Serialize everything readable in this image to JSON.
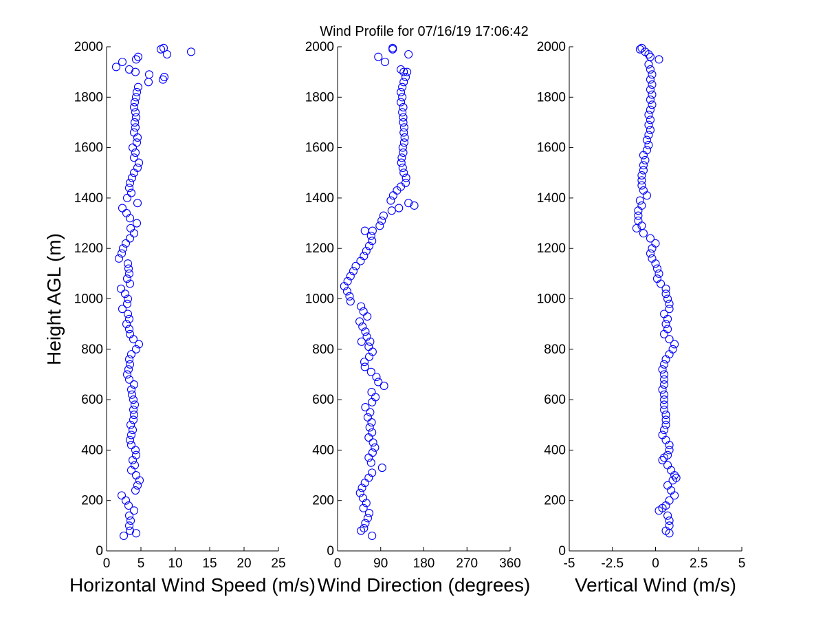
{
  "title": "Wind Profile for  07/16/19 17:06:42",
  "ylabel": "Height AGL (m)",
  "chart_data": [
    {
      "type": "scatter",
      "xlabel": "Horizontal Wind Speed (m/s)",
      "ylabel": "Height AGL (m)",
      "xlim": [
        0,
        25
      ],
      "ylim": [
        0,
        2000
      ],
      "xticks": [
        "0",
        "5",
        "10",
        "15",
        "20",
        "25"
      ],
      "xtick_values": [
        0,
        5,
        10,
        15,
        20,
        25
      ],
      "yticks": [
        "0",
        "200",
        "400",
        "600",
        "800",
        "1000",
        "1200",
        "1400",
        "1600",
        "1800",
        "2000"
      ],
      "ytick_values": [
        0,
        200,
        400,
        600,
        800,
        1000,
        1200,
        1400,
        1600,
        1800,
        2000
      ],
      "marker_color": "#0000ff",
      "points": [
        [
          2.5,
          60
        ],
        [
          4.3,
          70
        ],
        [
          3.4,
          80
        ],
        [
          3.3,
          100
        ],
        [
          3.5,
          120
        ],
        [
          3.3,
          140
        ],
        [
          4.0,
          160
        ],
        [
          3.2,
          180
        ],
        [
          2.8,
          200
        ],
        [
          2.2,
          220
        ],
        [
          4.2,
          240
        ],
        [
          4.5,
          260
        ],
        [
          4.8,
          280
        ],
        [
          4.3,
          300
        ],
        [
          3.6,
          320
        ],
        [
          4.1,
          340
        ],
        [
          3.8,
          360
        ],
        [
          4.3,
          380
        ],
        [
          4.2,
          400
        ],
        [
          3.6,
          420
        ],
        [
          3.4,
          440
        ],
        [
          3.6,
          460
        ],
        [
          3.8,
          480
        ],
        [
          3.5,
          500
        ],
        [
          3.9,
          520
        ],
        [
          4.0,
          540
        ],
        [
          3.9,
          560
        ],
        [
          4.1,
          580
        ],
        [
          3.9,
          600
        ],
        [
          3.7,
          620
        ],
        [
          3.6,
          640
        ],
        [
          4.0,
          660
        ],
        [
          3.3,
          680
        ],
        [
          3.0,
          700
        ],
        [
          3.2,
          720
        ],
        [
          3.4,
          740
        ],
        [
          3.3,
          760
        ],
        [
          3.6,
          780
        ],
        [
          4.3,
          800
        ],
        [
          4.7,
          820
        ],
        [
          3.9,
          840
        ],
        [
          3.4,
          860
        ],
        [
          3.3,
          880
        ],
        [
          2.9,
          900
        ],
        [
          3.3,
          920
        ],
        [
          3.1,
          940
        ],
        [
          2.3,
          960
        ],
        [
          3.0,
          980
        ],
        [
          3.1,
          1000
        ],
        [
          2.7,
          1020
        ],
        [
          2.1,
          1040
        ],
        [
          3.4,
          1060
        ],
        [
          3.0,
          1080
        ],
        [
          3.3,
          1100
        ],
        [
          3.2,
          1120
        ],
        [
          3.1,
          1140
        ],
        [
          1.8,
          1160
        ],
        [
          2.2,
          1180
        ],
        [
          2.4,
          1200
        ],
        [
          2.8,
          1220
        ],
        [
          3.4,
          1240
        ],
        [
          4.0,
          1260
        ],
        [
          3.5,
          1280
        ],
        [
          4.4,
          1300
        ],
        [
          3.4,
          1320
        ],
        [
          2.9,
          1340
        ],
        [
          2.3,
          1360
        ],
        [
          4.5,
          1380
        ],
        [
          3.0,
          1400
        ],
        [
          3.6,
          1420
        ],
        [
          3.3,
          1440
        ],
        [
          3.4,
          1460
        ],
        [
          3.7,
          1480
        ],
        [
          4.0,
          1500
        ],
        [
          4.5,
          1520
        ],
        [
          4.7,
          1540
        ],
        [
          4.0,
          1560
        ],
        [
          4.2,
          1580
        ],
        [
          3.8,
          1600
        ],
        [
          4.4,
          1620
        ],
        [
          4.5,
          1640
        ],
        [
          4.0,
          1660
        ],
        [
          4.2,
          1680
        ],
        [
          4.1,
          1700
        ],
        [
          4.3,
          1720
        ],
        [
          4.2,
          1740
        ],
        [
          4.0,
          1760
        ],
        [
          4.1,
          1780
        ],
        [
          4.3,
          1800
        ],
        [
          4.4,
          1820
        ],
        [
          4.6,
          1840
        ],
        [
          6.1,
          1860
        ],
        [
          8.2,
          1870
        ],
        [
          8.4,
          1880
        ],
        [
          6.2,
          1890
        ],
        [
          4.2,
          1900
        ],
        [
          3.3,
          1910
        ],
        [
          1.4,
          1920
        ],
        [
          2.3,
          1940
        ],
        [
          4.3,
          1950
        ],
        [
          4.6,
          1960
        ],
        [
          8.8,
          1970
        ],
        [
          12.3,
          1980
        ],
        [
          7.9,
          1990
        ],
        [
          8.3,
          1995
        ]
      ]
    },
    {
      "type": "scatter",
      "xlabel": "Wind Direction (degrees)",
      "xlim": [
        0,
        360
      ],
      "ylim": [
        0,
        2000
      ],
      "xticks": [
        "0",
        "90",
        "180",
        "270",
        "360"
      ],
      "xtick_values": [
        0,
        90,
        180,
        270,
        360
      ],
      "yticks": [
        "0",
        "200",
        "400",
        "600",
        "800",
        "1000",
        "1200",
        "1400",
        "1600",
        "1800",
        "2000"
      ],
      "ytick_values": [
        0,
        200,
        400,
        600,
        800,
        1000,
        1200,
        1400,
        1600,
        1800,
        2000
      ],
      "marker_color": "#0000ff",
      "points": [
        [
          72,
          60
        ],
        [
          49,
          80
        ],
        [
          55,
          90
        ],
        [
          58,
          110
        ],
        [
          63,
          130
        ],
        [
          66,
          150
        ],
        [
          54,
          170
        ],
        [
          60,
          190
        ],
        [
          53,
          210
        ],
        [
          47,
          230
        ],
        [
          51,
          250
        ],
        [
          57,
          270
        ],
        [
          65,
          290
        ],
        [
          72,
          310
        ],
        [
          93,
          330
        ],
        [
          70,
          350
        ],
        [
          65,
          370
        ],
        [
          73,
          390
        ],
        [
          78,
          410
        ],
        [
          74,
          430
        ],
        [
          65,
          450
        ],
        [
          72,
          470
        ],
        [
          67,
          490
        ],
        [
          71,
          510
        ],
        [
          63,
          530
        ],
        [
          68,
          550
        ],
        [
          58,
          570
        ],
        [
          72,
          590
        ],
        [
          79,
          610
        ],
        [
          71,
          630
        ],
        [
          97,
          655
        ],
        [
          85,
          670
        ],
        [
          81,
          690
        ],
        [
          70,
          710
        ],
        [
          57,
          730
        ],
        [
          56,
          750
        ],
        [
          66,
          770
        ],
        [
          73,
          790
        ],
        [
          65,
          810
        ],
        [
          68,
          830
        ],
        [
          50,
          830
        ],
        [
          61,
          850
        ],
        [
          58,
          870
        ],
        [
          52,
          890
        ],
        [
          46,
          910
        ],
        [
          62,
          930
        ],
        [
          54,
          950
        ],
        [
          49,
          970
        ],
        [
          27,
          990
        ],
        [
          25,
          1010
        ],
        [
          20,
          1030
        ],
        [
          14,
          1050
        ],
        [
          21,
          1070
        ],
        [
          27,
          1090
        ],
        [
          33,
          1110
        ],
        [
          38,
          1130
        ],
        [
          48,
          1150
        ],
        [
          55,
          1170
        ],
        [
          60,
          1190
        ],
        [
          66,
          1210
        ],
        [
          72,
          1230
        ],
        [
          70,
          1250
        ],
        [
          73,
          1270
        ],
        [
          57,
          1270
        ],
        [
          88,
          1290
        ],
        [
          92,
          1310
        ],
        [
          96,
          1330
        ],
        [
          113,
          1350
        ],
        [
          128,
          1360
        ],
        [
          148,
          1380
        ],
        [
          160,
          1370
        ],
        [
          111,
          1390
        ],
        [
          116,
          1410
        ],
        [
          124,
          1430
        ],
        [
          132,
          1445
        ],
        [
          142,
          1460
        ],
        [
          143,
          1480
        ],
        [
          138,
          1500
        ],
        [
          136,
          1520
        ],
        [
          133,
          1540
        ],
        [
          134,
          1560
        ],
        [
          137,
          1580
        ],
        [
          136,
          1600
        ],
        [
          139,
          1620
        ],
        [
          140,
          1640
        ],
        [
          138,
          1660
        ],
        [
          139,
          1680
        ],
        [
          137,
          1700
        ],
        [
          137,
          1720
        ],
        [
          135,
          1740
        ],
        [
          137,
          1760
        ],
        [
          132,
          1780
        ],
        [
          135,
          1800
        ],
        [
          132,
          1820
        ],
        [
          135,
          1840
        ],
        [
          138,
          1860
        ],
        [
          142,
          1880
        ],
        [
          138,
          1900
        ],
        [
          145,
          1900
        ],
        [
          132,
          1910
        ],
        [
          99,
          1940
        ],
        [
          85,
          1960
        ],
        [
          148,
          1970
        ],
        [
          115,
          1990
        ],
        [
          115,
          1995
        ]
      ]
    },
    {
      "type": "scatter",
      "xlabel": "Vertical Wind (m/s)",
      "xlim": [
        -5,
        5
      ],
      "ylim": [
        0,
        2000
      ],
      "xticks": [
        "-5",
        "-2.5",
        "0",
        "2.5",
        "5"
      ],
      "xtick_values": [
        -5,
        -2.5,
        0,
        2.5,
        5
      ],
      "yticks": [
        "0",
        "200",
        "400",
        "600",
        "800",
        "1000",
        "1200",
        "1400",
        "1600",
        "1800",
        "2000"
      ],
      "ytick_values": [
        0,
        200,
        400,
        600,
        800,
        1000,
        1200,
        1400,
        1600,
        1800,
        2000
      ],
      "marker_color": "#0000ff",
      "points": [
        [
          0.8,
          70
        ],
        [
          0.6,
          80
        ],
        [
          0.8,
          100
        ],
        [
          0.8,
          120
        ],
        [
          0.7,
          140
        ],
        [
          0.2,
          160
        ],
        [
          0.4,
          170
        ],
        [
          0.6,
          180
        ],
        [
          0.8,
          200
        ],
        [
          1.1,
          220
        ],
        [
          0.9,
          240
        ],
        [
          0.7,
          260
        ],
        [
          1.0,
          280
        ],
        [
          1.2,
          290
        ],
        [
          1.1,
          300
        ],
        [
          0.9,
          320
        ],
        [
          0.7,
          340
        ],
        [
          0.4,
          360
        ],
        [
          0.5,
          370
        ],
        [
          0.7,
          380
        ],
        [
          0.8,
          400
        ],
        [
          0.8,
          420
        ],
        [
          0.6,
          440
        ],
        [
          0.4,
          460
        ],
        [
          0.5,
          480
        ],
        [
          0.6,
          500
        ],
        [
          0.6,
          520
        ],
        [
          0.6,
          540
        ],
        [
          0.5,
          560
        ],
        [
          0.5,
          580
        ],
        [
          0.5,
          600
        ],
        [
          0.5,
          620
        ],
        [
          0.4,
          640
        ],
        [
          0.5,
          660
        ],
        [
          0.5,
          680
        ],
        [
          0.5,
          700
        ],
        [
          0.4,
          720
        ],
        [
          0.5,
          740
        ],
        [
          0.6,
          760
        ],
        [
          0.8,
          780
        ],
        [
          1.0,
          800
        ],
        [
          1.1,
          820
        ],
        [
          0.8,
          840
        ],
        [
          0.5,
          860
        ],
        [
          0.7,
          880
        ],
        [
          0.6,
          900
        ],
        [
          0.7,
          920
        ],
        [
          0.5,
          940
        ],
        [
          0.8,
          960
        ],
        [
          0.8,
          980
        ],
        [
          0.7,
          1000
        ],
        [
          0.6,
          1020
        ],
        [
          0.6,
          1040
        ],
        [
          0.3,
          1060
        ],
        [
          0.1,
          1080
        ],
        [
          0.2,
          1100
        ],
        [
          0.1,
          1120
        ],
        [
          0.0,
          1140
        ],
        [
          -0.2,
          1160
        ],
        [
          -0.3,
          1180
        ],
        [
          -0.2,
          1200
        ],
        [
          0.0,
          1220
        ],
        [
          -0.3,
          1240
        ],
        [
          -0.7,
          1260
        ],
        [
          -1.1,
          1280
        ],
        [
          -0.8,
          1290
        ],
        [
          -1.0,
          1310
        ],
        [
          -1.0,
          1330
        ],
        [
          -1.0,
          1350
        ],
        [
          -0.8,
          1370
        ],
        [
          -0.9,
          1390
        ],
        [
          -0.5,
          1410
        ],
        [
          -0.7,
          1430
        ],
        [
          -0.8,
          1450
        ],
        [
          -0.8,
          1470
        ],
        [
          -0.8,
          1490
        ],
        [
          -0.7,
          1510
        ],
        [
          -0.7,
          1530
        ],
        [
          -0.6,
          1550
        ],
        [
          -0.7,
          1570
        ],
        [
          -0.5,
          1590
        ],
        [
          -0.4,
          1610
        ],
        [
          -0.5,
          1630
        ],
        [
          -0.4,
          1650
        ],
        [
          -0.3,
          1670
        ],
        [
          -0.4,
          1690
        ],
        [
          -0.3,
          1710
        ],
        [
          -0.4,
          1730
        ],
        [
          -0.3,
          1750
        ],
        [
          -0.2,
          1770
        ],
        [
          -0.3,
          1790
        ],
        [
          -0.2,
          1810
        ],
        [
          -0.3,
          1830
        ],
        [
          -0.2,
          1850
        ],
        [
          -0.3,
          1870
        ],
        [
          -0.2,
          1890
        ],
        [
          -0.3,
          1910
        ],
        [
          -0.4,
          1930
        ],
        [
          0.2,
          1950
        ],
        [
          -0.3,
          1960
        ],
        [
          -0.4,
          1970
        ],
        [
          -0.6,
          1980
        ],
        [
          -0.9,
          1990
        ],
        [
          -0.8,
          1995
        ]
      ]
    }
  ]
}
